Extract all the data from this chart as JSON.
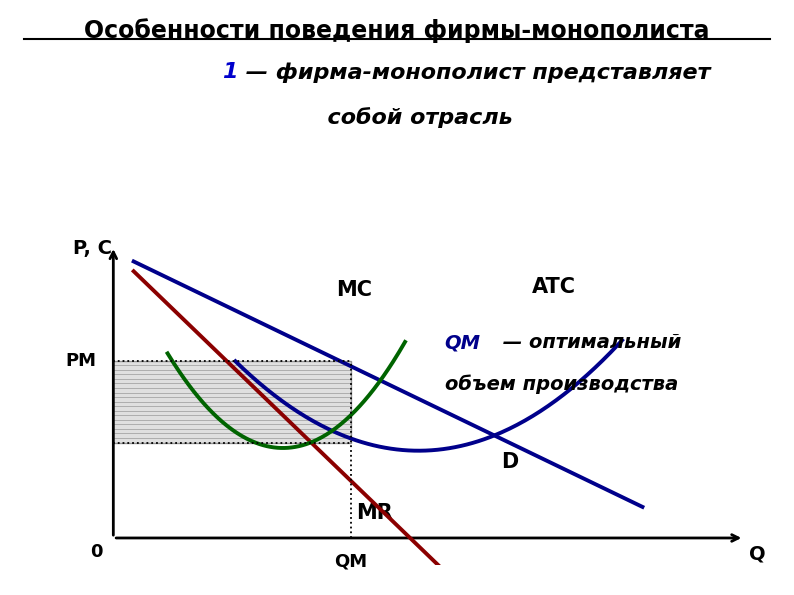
{
  "title": "Особенности поведения фирмы-монополиста",
  "subtitle_bold": "1",
  "subtitle_rest": " — фирма-монополист представляет",
  "subtitle_line2": "      собой отрасль",
  "background_color": "#ffffff",
  "ylabel": "P, C",
  "xlabel": "Q",
  "Qm_label": "QМ",
  "Pm_label": "PМ",
  "annotation_Qm_bold": "QМ",
  "annotation_text_line1": " — оптимальный",
  "annotation_text_line2": "объем производства",
  "curve_colors": {
    "D": "#00008B",
    "MR": "#8B0000",
    "MC": "#006400",
    "ATC": "#00008B"
  },
  "Qm": 3.5,
  "Pm": 6.5,
  "ATC_at_Qm": 3.5,
  "xlim": [
    0,
    9
  ],
  "ylim": [
    0,
    10.5
  ],
  "shading_color": "#cccccc",
  "shading_alpha": 0.6,
  "dashed_color": "#000000",
  "title_fontsize": 17,
  "subtitle_fontsize": 16,
  "label_fontsize": 14
}
